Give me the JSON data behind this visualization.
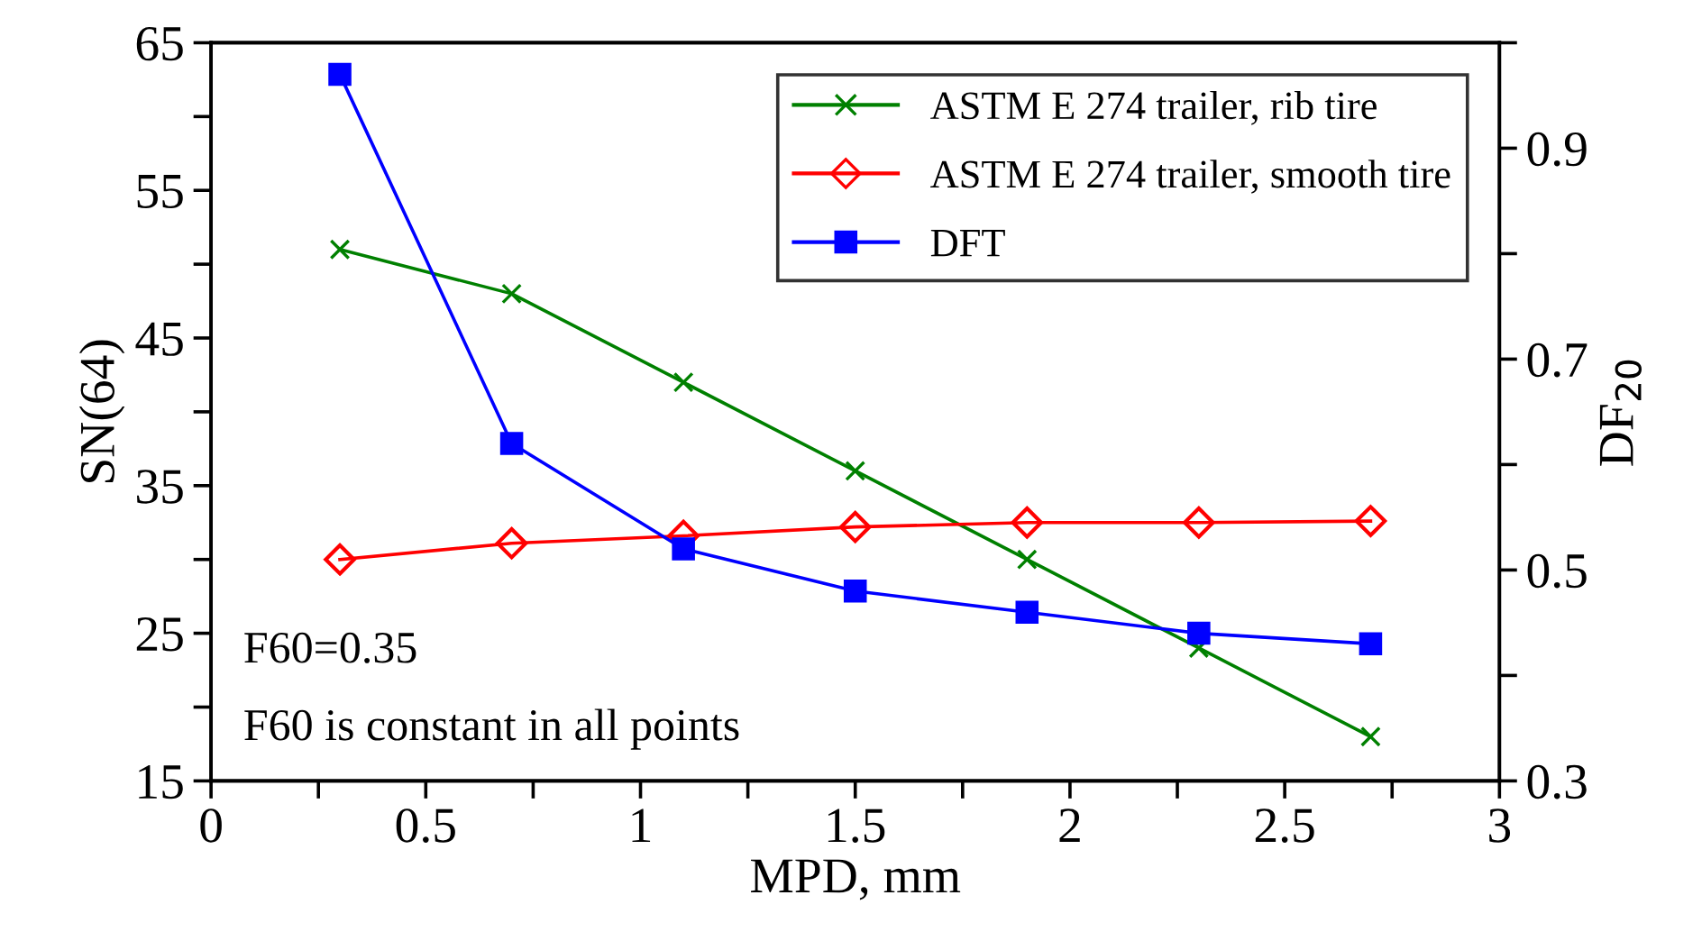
{
  "chart_data": {
    "type": "line",
    "xlabel": "MPD, mm",
    "ylabel": "SN(64)",
    "y2label": "DF$_{20}$",
    "x": [
      0.3,
      0.7,
      1.1,
      1.5,
      1.9,
      2.3,
      2.7
    ],
    "series": [
      {
        "name": "ASTM E 274 trailer, rib tire",
        "color": "#008000",
        "marker": "cross",
        "values": [
          51,
          48,
          42,
          36,
          30,
          24,
          18
        ]
      },
      {
        "name": "ASTM E 274 trailer, smooth tire",
        "color": "#ff0000",
        "marker": "diamond",
        "values": [
          30,
          31.1,
          31.6,
          32.2,
          32.5,
          32.5,
          32.6
        ]
      },
      {
        "name": "DFT",
        "color": "#0000ff",
        "marker": "square",
        "axis": "y2",
        "values": [
          0.97,
          0.62,
          0.52,
          0.48,
          0.46,
          0.44,
          0.43
        ]
      }
    ],
    "xlim": [
      0,
      3
    ],
    "xticks": [
      0,
      {
        "value": 0.25,
        "label": null
      },
      0.5,
      {
        "value": 0.75,
        "label": null
      },
      1,
      {
        "value": 1.25,
        "label": null
      },
      1.5,
      {
        "value": 1.75,
        "label": null
      },
      2,
      {
        "value": 2.25,
        "label": null
      },
      2.5,
      {
        "value": 2.75,
        "label": null
      },
      3
    ],
    "ylim": [
      15,
      65
    ],
    "yticks": [
      15,
      {
        "value": 20,
        "label": null
      },
      25,
      {
        "value": 30,
        "label": null
      },
      35,
      {
        "value": 40,
        "label": null
      },
      45,
      {
        "value": 50,
        "label": null
      },
      55,
      {
        "value": 60,
        "label": null
      },
      65
    ],
    "y2lim": [
      0.3,
      1.0
    ],
    "y2ticks": [
      0.3,
      {
        "value": 0.4,
        "label": null
      },
      0.5,
      {
        "value": 0.6,
        "label": null
      },
      0.7,
      {
        "value": 0.8,
        "label": null
      },
      0.9,
      {
        "value": 1.0,
        "label": null
      }
    ],
    "annotations": [
      "F60=0.35",
      "F60 is constant in all points"
    ],
    "legend": "top right",
    "grid": false,
    "line_style": "solid"
  }
}
